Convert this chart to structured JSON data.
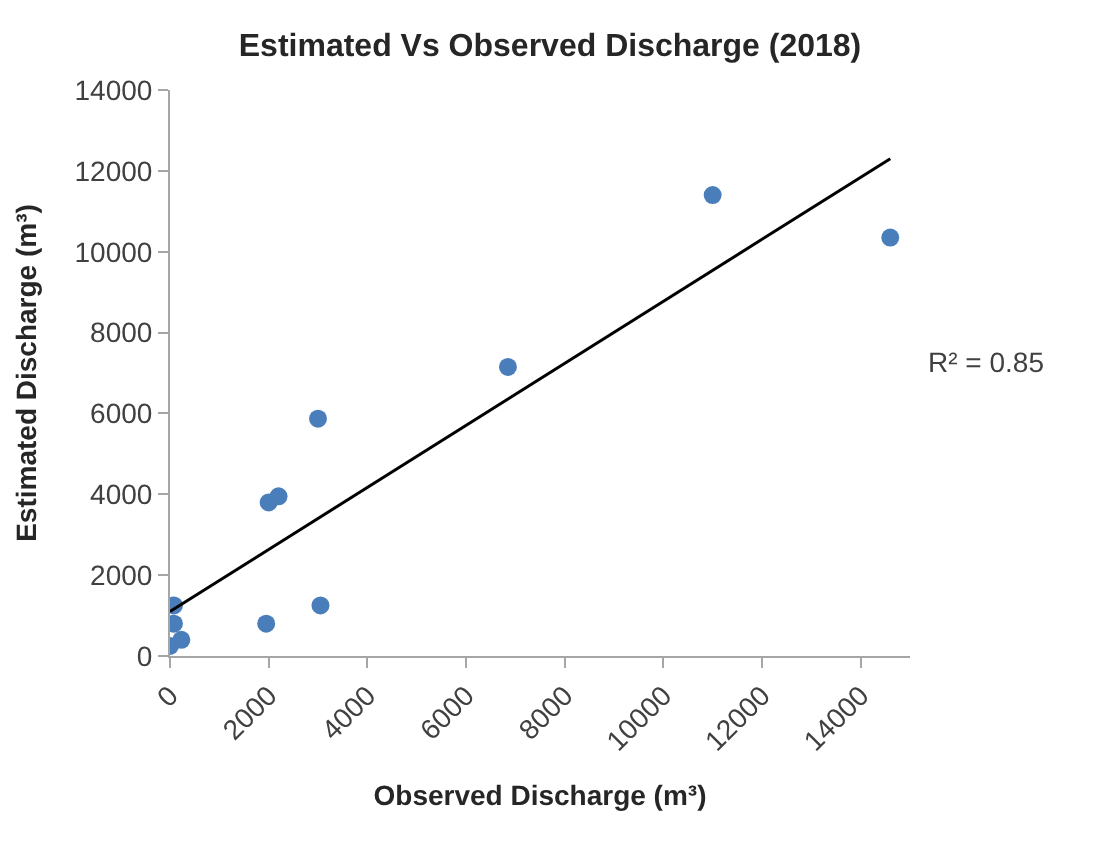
{
  "chart_data": {
    "type": "scatter",
    "title": "Estimated Vs Observed Discharge (2018)",
    "xlabel": "Observed Discharge (m³)",
    "ylabel": "Estimated Discharge (m³)",
    "series": [
      {
        "color": "#4a7ebb",
        "marker": "circle",
        "x": [
          11000,
          14600,
          6850,
          3000,
          2000,
          2200,
          3050,
          1950,
          80,
          80,
          0,
          230
        ],
        "values": [
          11400,
          10350,
          7150,
          5870,
          3800,
          3950,
          1250,
          800,
          1250,
          800,
          250,
          400
        ]
      },
      {
        "type": "line",
        "color": "#000000",
        "x": [
          0,
          14600
        ],
        "values": [
          1100,
          12300
        ]
      }
    ],
    "xlim": [
      0,
      15000
    ],
    "xticks": [
      0,
      2000,
      4000,
      6000,
      8000,
      10000,
      12000,
      14000
    ],
    "ylim": [
      0,
      14000
    ],
    "yticks": [
      0,
      2000,
      4000,
      6000,
      8000,
      10000,
      12000,
      14000
    ],
    "annotations": [
      "R² = 0.85"
    ]
  }
}
